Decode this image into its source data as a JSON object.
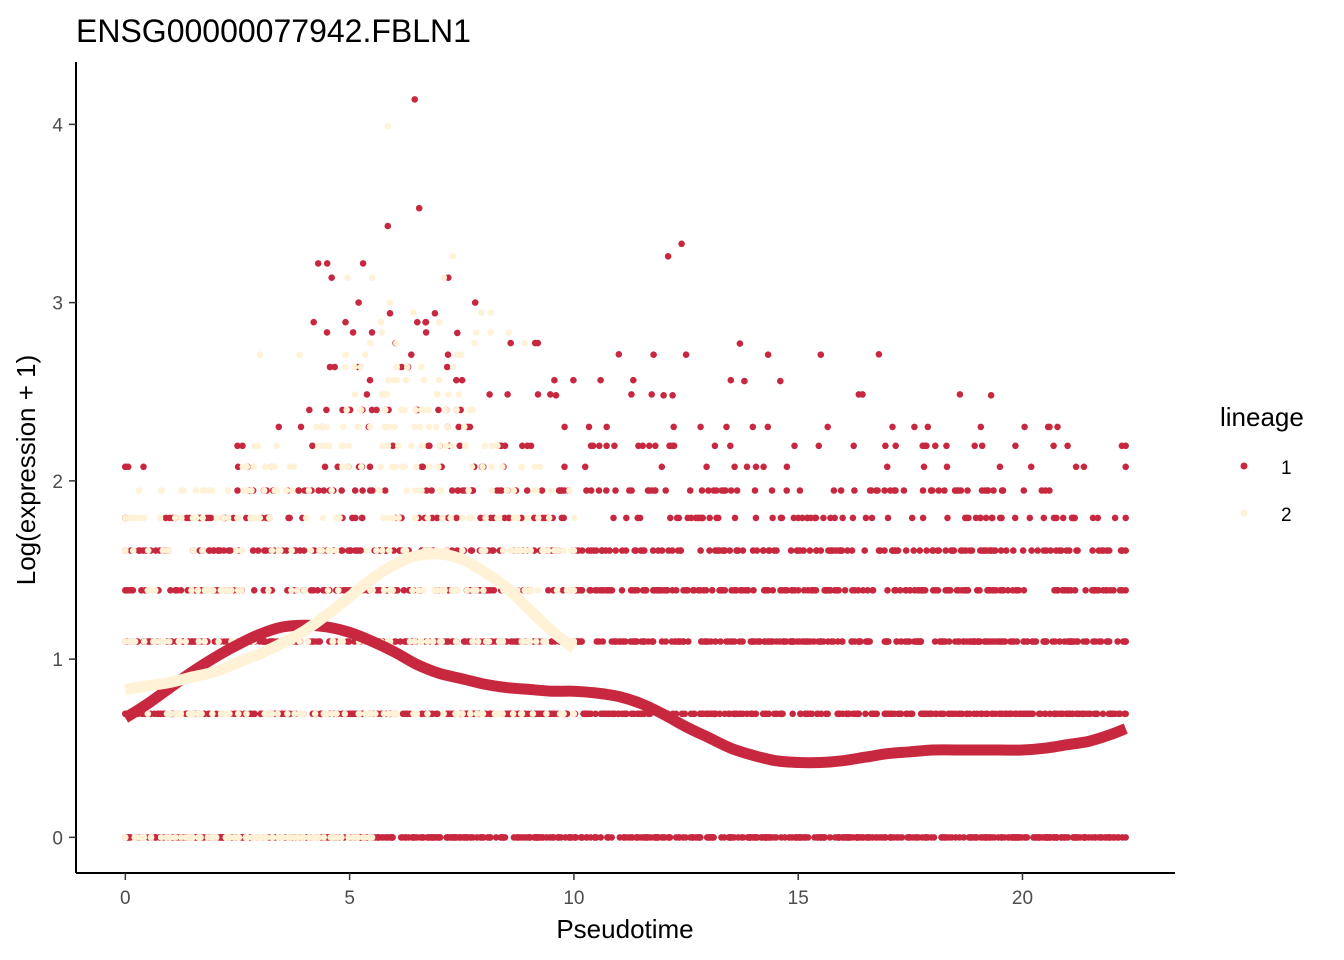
{
  "chart_data": {
    "type": "scatter",
    "title": "ENSG00000077942.FBLN1",
    "xlabel": "Pseudotime",
    "ylabel": "Log(expression + 1)",
    "xlim": [
      -1.1,
      23.4
    ],
    "ylim": [
      -0.2,
      4.35
    ],
    "x_ticks": [
      0,
      5,
      10,
      15,
      20
    ],
    "y_ticks": [
      0,
      1,
      2,
      3,
      4
    ],
    "x_tick_labels": [
      "0",
      "5",
      "10",
      "15",
      "20"
    ],
    "y_tick_labels": [
      "0",
      "1",
      "2",
      "3",
      "4"
    ],
    "grid": false,
    "legend": {
      "title": "lineage",
      "position": "right",
      "entries": [
        {
          "label": "1",
          "color": "#C8283F"
        },
        {
          "label": "2",
          "color": "#FFF2D6"
        }
      ]
    },
    "levels": [
      0,
      0.693,
      1.099,
      1.386,
      1.609,
      1.792,
      1.946,
      2.079,
      2.197,
      2.303,
      2.398,
      2.485,
      2.565,
      2.639,
      2.708,
      2.773,
      2.833,
      2.89,
      2.944,
      2.996
    ],
    "series": [
      {
        "name": "1",
        "color": "#C8283F",
        "x_range": [
          0,
          22.3
        ],
        "bands": [
          {
            "y": 0,
            "x_from": 0,
            "x_to": 22.3,
            "n": 600
          },
          {
            "y": 0.693,
            "x_from": 0,
            "x_to": 22.3,
            "n": 500
          },
          {
            "y": 1.099,
            "x_from": 0,
            "x_to": 22.3,
            "n": 420
          },
          {
            "y": 1.386,
            "x_from": 0,
            "x_to": 22.3,
            "n": 330
          },
          {
            "y": 1.609,
            "x_from": 0,
            "x_to": 22.3,
            "n": 250
          },
          {
            "y": 1.792,
            "x_from": 0,
            "x_to": 22.3,
            "n": 120
          },
          {
            "y": 1.946,
            "x_from": 2.5,
            "x_to": 20.6,
            "n": 110
          },
          {
            "y": 2.079,
            "x_from": 0,
            "x_to": 22.3,
            "n": 34
          },
          {
            "y": 2.197,
            "x_from": 2.5,
            "x_to": 22.3,
            "n": 45
          },
          {
            "y": 2.303,
            "x_from": 2.3,
            "x_to": 20.9,
            "n": 25
          },
          {
            "y": 2.398,
            "x_from": 4.1,
            "x_to": 7.7,
            "n": 18
          },
          {
            "y": 2.485,
            "x_from": 3.4,
            "x_to": 19.3,
            "n": 10
          },
          {
            "y": 2.565,
            "x_from": 3.9,
            "x_to": 14.6,
            "n": 8
          },
          {
            "y": 2.639,
            "x_from": 4.4,
            "x_to": 7.2,
            "n": 6
          },
          {
            "y": 2.708,
            "x_from": 4.7,
            "x_to": 16.8,
            "n": 6
          },
          {
            "y": 2.773,
            "x_from": 5.8,
            "x_to": 13.7,
            "n": 4
          },
          {
            "y": 2.833,
            "x_from": 4.3,
            "x_to": 7.5,
            "n": 4
          },
          {
            "y": 2.89,
            "x_from": 4.4,
            "x_to": 6.8,
            "n": 3
          }
        ],
        "outliers": [
          [
            0,
            2.079
          ],
          [
            0,
            1.792
          ],
          [
            6.45,
            4.14
          ],
          [
            6.55,
            3.53
          ],
          [
            5.85,
            3.43
          ],
          [
            4.3,
            3.22
          ],
          [
            4.5,
            3.22
          ],
          [
            5.3,
            3.22
          ],
          [
            12.1,
            3.26
          ],
          [
            12.4,
            3.33
          ],
          [
            4.6,
            3.14
          ],
          [
            7.2,
            3.14
          ],
          [
            5.2,
            3.0
          ],
          [
            7.8,
            3.0
          ],
          [
            6.9,
            2.94
          ],
          [
            5.9,
            2.94
          ],
          [
            4.2,
            2.89
          ],
          [
            6.7,
            2.89
          ],
          [
            7.4,
            2.83
          ],
          [
            13.7,
            2.77
          ],
          [
            16.8,
            2.71
          ],
          [
            11.0,
            2.71
          ],
          [
            13.8,
            2.56
          ],
          [
            14.6,
            2.56
          ],
          [
            19.3,
            2.48
          ],
          [
            9.6,
            2.48
          ],
          [
            12.0,
            2.48
          ],
          [
            12.2,
            2.48
          ]
        ],
        "trend": {
          "x": [
            0,
            0.5,
            1,
            1.5,
            2,
            2.5,
            3,
            3.5,
            4,
            4.5,
            5,
            5.5,
            6,
            6.5,
            7,
            7.5,
            8,
            8.5,
            9,
            9.5,
            10,
            10.5,
            11,
            11.5,
            12,
            12.5,
            13,
            13.5,
            14,
            14.5,
            15,
            15.5,
            16,
            16.5,
            17,
            17.5,
            18,
            18.5,
            19,
            19.5,
            20,
            20.5,
            21,
            21.5,
            22,
            22.3
          ],
          "y": [
            0.67,
            0.75,
            0.84,
            0.93,
            1.01,
            1.08,
            1.14,
            1.18,
            1.19,
            1.18,
            1.15,
            1.1,
            1.04,
            0.97,
            0.92,
            0.89,
            0.86,
            0.84,
            0.83,
            0.82,
            0.82,
            0.81,
            0.79,
            0.75,
            0.69,
            0.62,
            0.56,
            0.5,
            0.46,
            0.43,
            0.42,
            0.42,
            0.43,
            0.45,
            0.47,
            0.48,
            0.49,
            0.49,
            0.49,
            0.49,
            0.49,
            0.5,
            0.52,
            0.54,
            0.58,
            0.61
          ]
        }
      },
      {
        "name": "2",
        "color": "#FFF2D6",
        "x_range": [
          0,
          10
        ],
        "bands": [
          {
            "y": 0,
            "x_from": 0,
            "x_to": 5.5,
            "n": 90
          },
          {
            "y": 0.693,
            "x_from": 0.5,
            "x_to": 10,
            "n": 80
          },
          {
            "y": 1.099,
            "x_from": 0,
            "x_to": 10,
            "n": 70
          },
          {
            "y": 1.386,
            "x_from": 0.5,
            "x_to": 10,
            "n": 60
          },
          {
            "y": 1.609,
            "x_from": 0,
            "x_to": 10,
            "n": 55
          },
          {
            "y": 1.792,
            "x_from": 0,
            "x_to": 10,
            "n": 50
          },
          {
            "y": 1.946,
            "x_from": 0.3,
            "x_to": 9.9,
            "n": 35
          },
          {
            "y": 2.079,
            "x_from": 2.5,
            "x_to": 9.3,
            "n": 30
          },
          {
            "y": 2.197,
            "x_from": 2.6,
            "x_to": 8.3,
            "n": 25
          },
          {
            "y": 2.303,
            "x_from": 4.0,
            "x_to": 7.8,
            "n": 18
          },
          {
            "y": 2.398,
            "x_from": 4.8,
            "x_to": 7.8,
            "n": 14
          },
          {
            "y": 2.485,
            "x_from": 5.0,
            "x_to": 7.5,
            "n": 8
          },
          {
            "y": 2.565,
            "x_from": 5.5,
            "x_to": 7.2,
            "n": 6
          },
          {
            "y": 2.639,
            "x_from": 4.5,
            "x_to": 7.4,
            "n": 7
          },
          {
            "y": 2.708,
            "x_from": 0.8,
            "x_to": 8.9,
            "n": 6
          },
          {
            "y": 2.773,
            "x_from": 5.4,
            "x_to": 9.3,
            "n": 4
          },
          {
            "y": 2.833,
            "x_from": 5.6,
            "x_to": 9.9,
            "n": 4
          },
          {
            "y": 2.944,
            "x_from": 5.9,
            "x_to": 9.6,
            "n": 3
          }
        ],
        "outliers": [
          [
            5.85,
            3.99
          ],
          [
            7.3,
            3.26
          ],
          [
            7.1,
            3.14
          ],
          [
            5.5,
            3.14
          ],
          [
            5.9,
            3.0
          ],
          [
            4.95,
            3.14
          ],
          [
            5.7,
            2.89
          ],
          [
            7.0,
            2.89
          ]
        ],
        "trend": {
          "x": [
            0,
            0.5,
            1,
            1.5,
            2,
            2.5,
            3,
            3.5,
            4,
            4.5,
            5,
            5.5,
            6,
            6.5,
            7,
            7.5,
            8,
            8.5,
            9,
            9.5,
            10
          ],
          "y": [
            0.83,
            0.85,
            0.87,
            0.9,
            0.93,
            0.98,
            1.03,
            1.09,
            1.16,
            1.25,
            1.35,
            1.45,
            1.53,
            1.58,
            1.59,
            1.56,
            1.49,
            1.4,
            1.28,
            1.16,
            1.06
          ]
        }
      }
    ]
  }
}
